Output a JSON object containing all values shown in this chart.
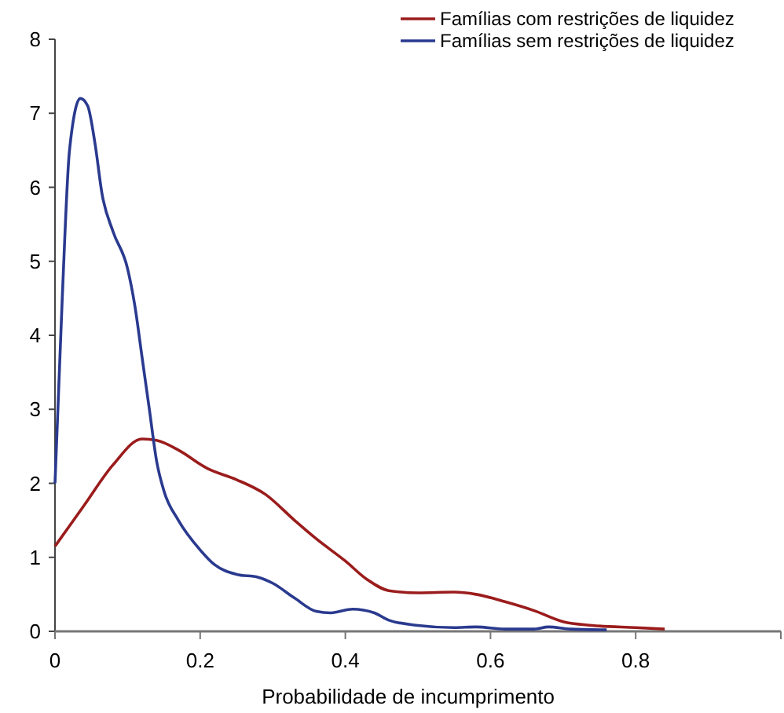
{
  "chart_data": {
    "type": "line",
    "xlabel": "Probabilidade de incumprimento",
    "xlim": [
      0,
      1
    ],
    "xticks": [
      0,
      0.2,
      0.4,
      0.6,
      0.8,
      {
        "value": 1,
        "label": null
      }
    ],
    "ylim": [
      0,
      8
    ],
    "yticks": [
      0,
      1,
      2,
      3,
      4,
      5,
      6,
      7,
      8
    ],
    "legend": "top right",
    "grid": false,
    "marker": "none",
    "line_style": "solid",
    "series": [
      {
        "name": "Famílias com restrições de liquidez",
        "color": "#9b1c1c",
        "x": [
          0,
          0.04,
          0.08,
          0.12,
          0.14,
          0.17,
          0.21,
          0.25,
          0.29,
          0.33,
          0.36,
          0.4,
          0.43,
          0.46,
          0.5,
          0.55,
          0.58,
          0.62,
          0.66,
          0.7,
          0.74,
          0.8,
          0.84
        ],
        "values": [
          1.15,
          1.7,
          2.25,
          2.6,
          2.58,
          2.45,
          2.2,
          2.05,
          1.85,
          1.5,
          1.25,
          0.95,
          0.7,
          0.55,
          0.52,
          0.53,
          0.5,
          0.4,
          0.28,
          0.13,
          0.08,
          0.05,
          0.03
        ]
      },
      {
        "name": "Famílias sem restrições de liquidez",
        "color": "#2a3a8f",
        "x": [
          0,
          0.01,
          0.02,
          0.035,
          0.045,
          0.055,
          0.065,
          0.08,
          0.1,
          0.11,
          0.12,
          0.13,
          0.14,
          0.15,
          0.17,
          0.2,
          0.22,
          0.25,
          0.28,
          0.3,
          0.33,
          0.36,
          0.38,
          0.41,
          0.44,
          0.46,
          0.5,
          0.55,
          0.58,
          0.62,
          0.66,
          0.68,
          0.71,
          0.76
        ],
        "values": [
          2.0,
          4.5,
          6.5,
          7.2,
          7.1,
          6.6,
          5.9,
          5.4,
          4.9,
          4.4,
          3.7,
          3.0,
          2.3,
          1.9,
          1.5,
          1.1,
          0.9,
          0.77,
          0.73,
          0.65,
          0.45,
          0.27,
          0.25,
          0.3,
          0.25,
          0.15,
          0.08,
          0.05,
          0.06,
          0.03,
          0.03,
          0.06,
          0.03,
          0.02
        ]
      }
    ]
  }
}
